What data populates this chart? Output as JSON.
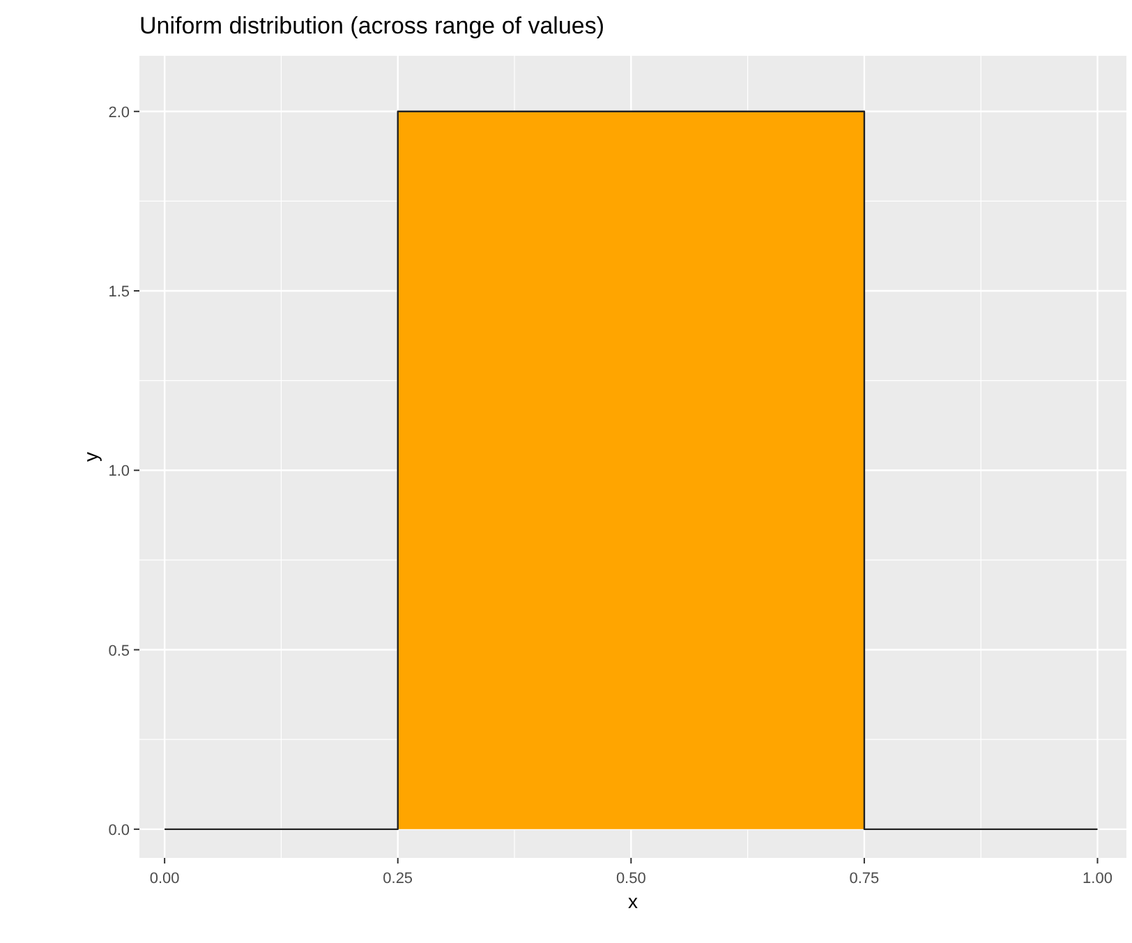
{
  "chart_data": {
    "type": "area",
    "title": "Uniform distribution (across range of values)",
    "xlabel": "x",
    "ylabel": "y",
    "x": [
      0,
      0.25,
      0.25,
      0.75,
      0.75,
      1
    ],
    "series": [
      {
        "color": "#ffa500",
        "values": [
          0,
          0,
          2,
          2,
          0,
          0
        ]
      }
    ],
    "xlim": [
      -0.027,
      1.031
    ],
    "ylim": [
      -0.08,
      2.155
    ],
    "xticks": [
      {
        "value": 0,
        "label": "0.00"
      },
      {
        "value": 0.25,
        "label": "0.25"
      },
      {
        "value": 0.5,
        "label": "0.50"
      },
      {
        "value": 0.75,
        "label": "0.75"
      },
      {
        "value": 1,
        "label": "1.00"
      }
    ],
    "yticks": [
      {
        "value": 0,
        "label": "0.0"
      },
      {
        "value": 0.5,
        "label": "0.5"
      },
      {
        "value": 1,
        "label": "1.0"
      },
      {
        "value": 1.5,
        "label": "1.5"
      },
      {
        "value": 2,
        "label": "2.0"
      }
    ],
    "grid": true
  }
}
